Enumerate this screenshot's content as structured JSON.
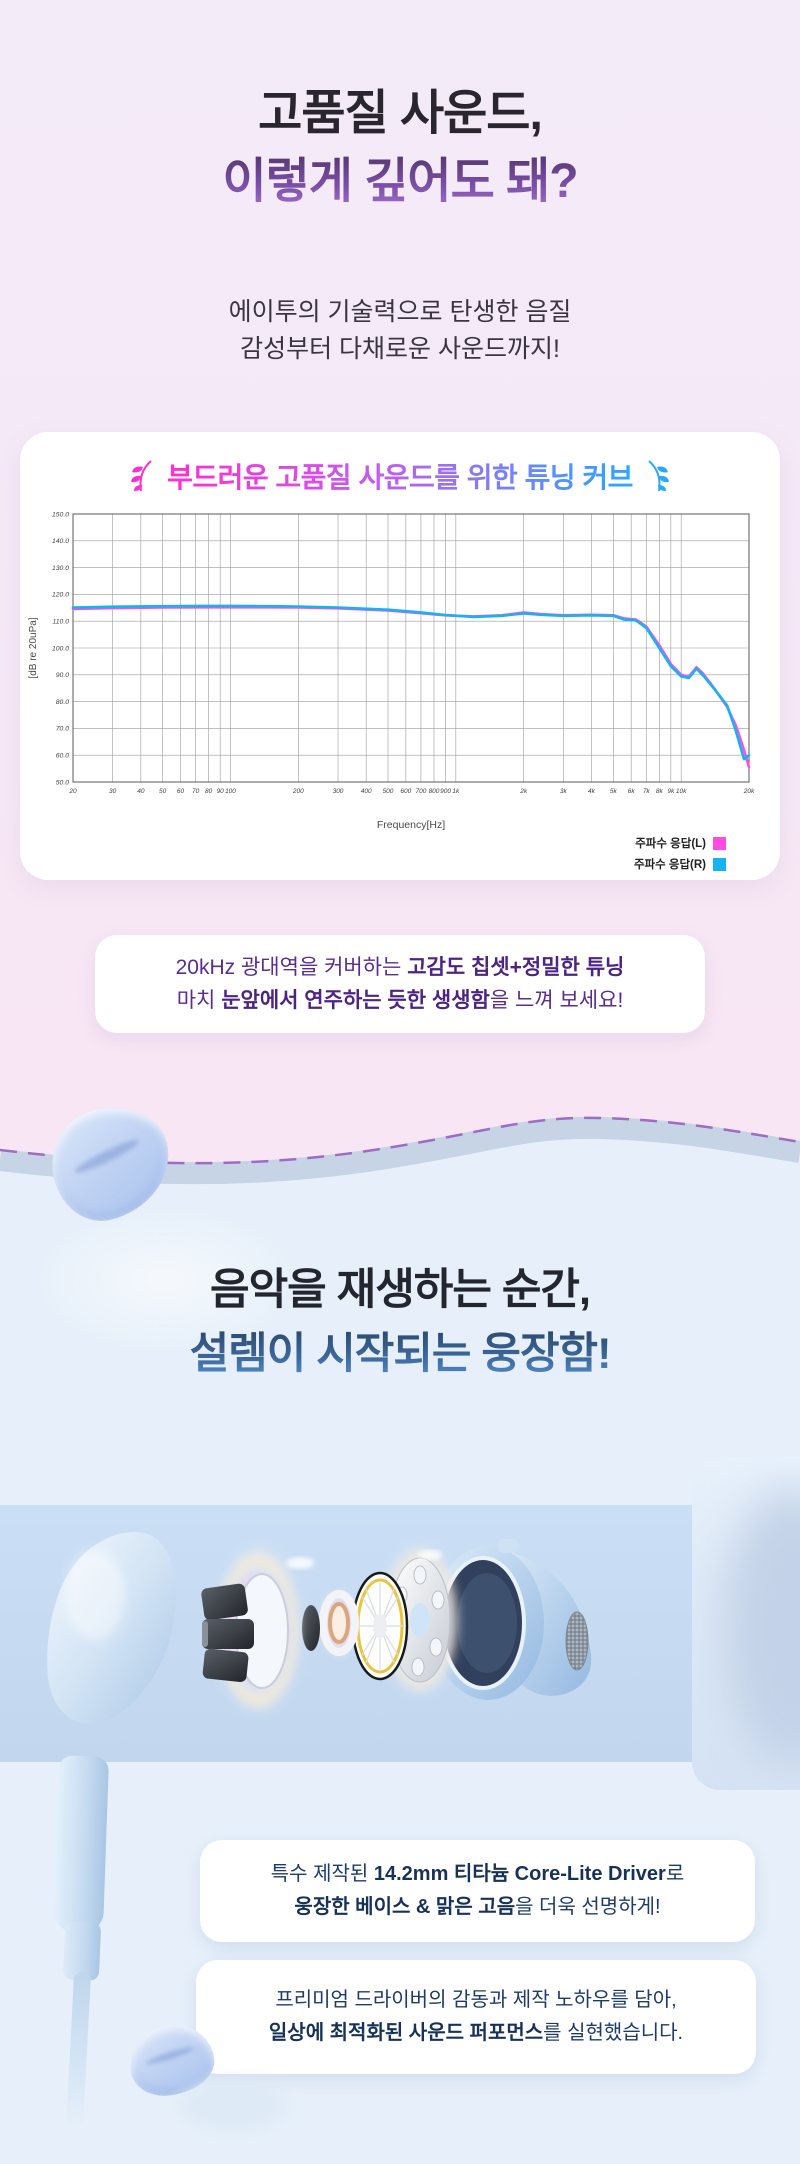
{
  "hero": {
    "title_line1": "고품질 사운드,",
    "title_line2": "이렇게 깊어도 돼?",
    "subtitle_line1": "에이투의 기술력으로 탄생한 음질",
    "subtitle_line2": "감성부터 다채로운 사운드까지!"
  },
  "tuning_card": {
    "title": "부드러운 고품질 사운드를 위한 튜닝 커브",
    "accent_left": "#ff2ed2",
    "accent_right": "#29a8ff",
    "legend": [
      {
        "label": "주파수 응답(L)",
        "color": "#ff4de0"
      },
      {
        "label": "주파수 응답(R)",
        "color": "#14b4f2"
      }
    ]
  },
  "chart_data": {
    "type": "line",
    "title": "부드러운 고품질 사운드를 위한 튜닝 커브",
    "xlabel": "Frequency[Hz]",
    "ylabel": "[dB re 20uPa]",
    "x_scale": "log",
    "xlim": [
      20,
      20000
    ],
    "ylim": [
      50,
      150
    ],
    "grid": true,
    "legend_position": "bottom-right",
    "y_ticks": [
      150,
      140,
      130,
      120,
      110,
      100,
      90,
      80,
      70,
      60,
      50
    ],
    "x_tick_values": [
      20,
      30,
      40,
      50,
      60,
      70,
      80,
      90,
      100,
      200,
      300,
      400,
      500,
      600,
      700,
      800,
      900,
      1000,
      2000,
      3000,
      4000,
      5000,
      6000,
      7000,
      8000,
      9000,
      10000,
      20000
    ],
    "x_tick_labels": [
      "20",
      "30",
      "40",
      "50",
      "60",
      "70",
      "80",
      "90",
      "100",
      "200",
      "300",
      "400",
      "500",
      "600",
      "700",
      "800",
      "900",
      "1k",
      "2k",
      "3k",
      "4k",
      "5k",
      "6k",
      "7k",
      "8k",
      "9k",
      "10k",
      "20k"
    ],
    "x": [
      20,
      30,
      50,
      80,
      100,
      150,
      200,
      300,
      500,
      700,
      900,
      1200,
      1600,
      2000,
      2400,
      3000,
      4000,
      5000,
      5600,
      6300,
      7000,
      8000,
      9000,
      10000,
      10800,
      11700,
      12500,
      14000,
      16000,
      17500,
      19000,
      20000
    ],
    "series": [
      {
        "name": "주파수 응답(L)",
        "color": "#ff4de0",
        "values": [
          114.6,
          114.9,
          115.1,
          115.2,
          115.2,
          115.2,
          115.1,
          114.8,
          114.0,
          113.0,
          112.2,
          111.8,
          112.2,
          113.2,
          112.6,
          112.2,
          112.4,
          112.2,
          111.0,
          110.6,
          108.0,
          101.0,
          94.0,
          90.0,
          89.3,
          92.8,
          90.5,
          85.0,
          78.0,
          71.0,
          62.0,
          55.5
        ]
      },
      {
        "name": "주파수 응답(R)",
        "color": "#14b4f2",
        "values": [
          115.1,
          115.4,
          115.6,
          115.7,
          115.7,
          115.6,
          115.5,
          115.1,
          114.3,
          113.3,
          112.3,
          111.6,
          112.0,
          112.9,
          112.4,
          112.0,
          112.2,
          112.0,
          110.6,
          110.3,
          107.5,
          100.0,
          93.2,
          89.4,
          88.8,
          92.3,
          89.8,
          84.8,
          78.5,
          69.0,
          58.5,
          60.0
        ]
      }
    ]
  },
  "chipset_box": {
    "line1_pre": "20kHz 광대역을 커버하는 ",
    "line1_bold": "고감도 칩셋+정밀한 튜닝",
    "line2_pre": "마치 ",
    "line2_bold": "눈앞에서 연주하는 듯한 생생함",
    "line2_post": "을 느껴 보세요!"
  },
  "bass": {
    "title_line1": "음악을 재생하는 순간,",
    "title_line2": "설렘이 시작되는 웅장함!"
  },
  "driver_box1": {
    "line1_pre": "특수 제작된 ",
    "line1_bold": "14.2mm 티타늄 Core-Lite Driver",
    "line1_post": "로",
    "line2_bold": "웅장한 베이스 & 맑은 고음",
    "line2_post": "을 더욱 선명하게!"
  },
  "driver_box2": {
    "line1": "프리미엄 드라이버의 감동과 제작 노하우를 담아,",
    "line2_bold": "일상에 최적화된 사운드 퍼포먼스",
    "line2_post": "를 실현했습니다."
  }
}
